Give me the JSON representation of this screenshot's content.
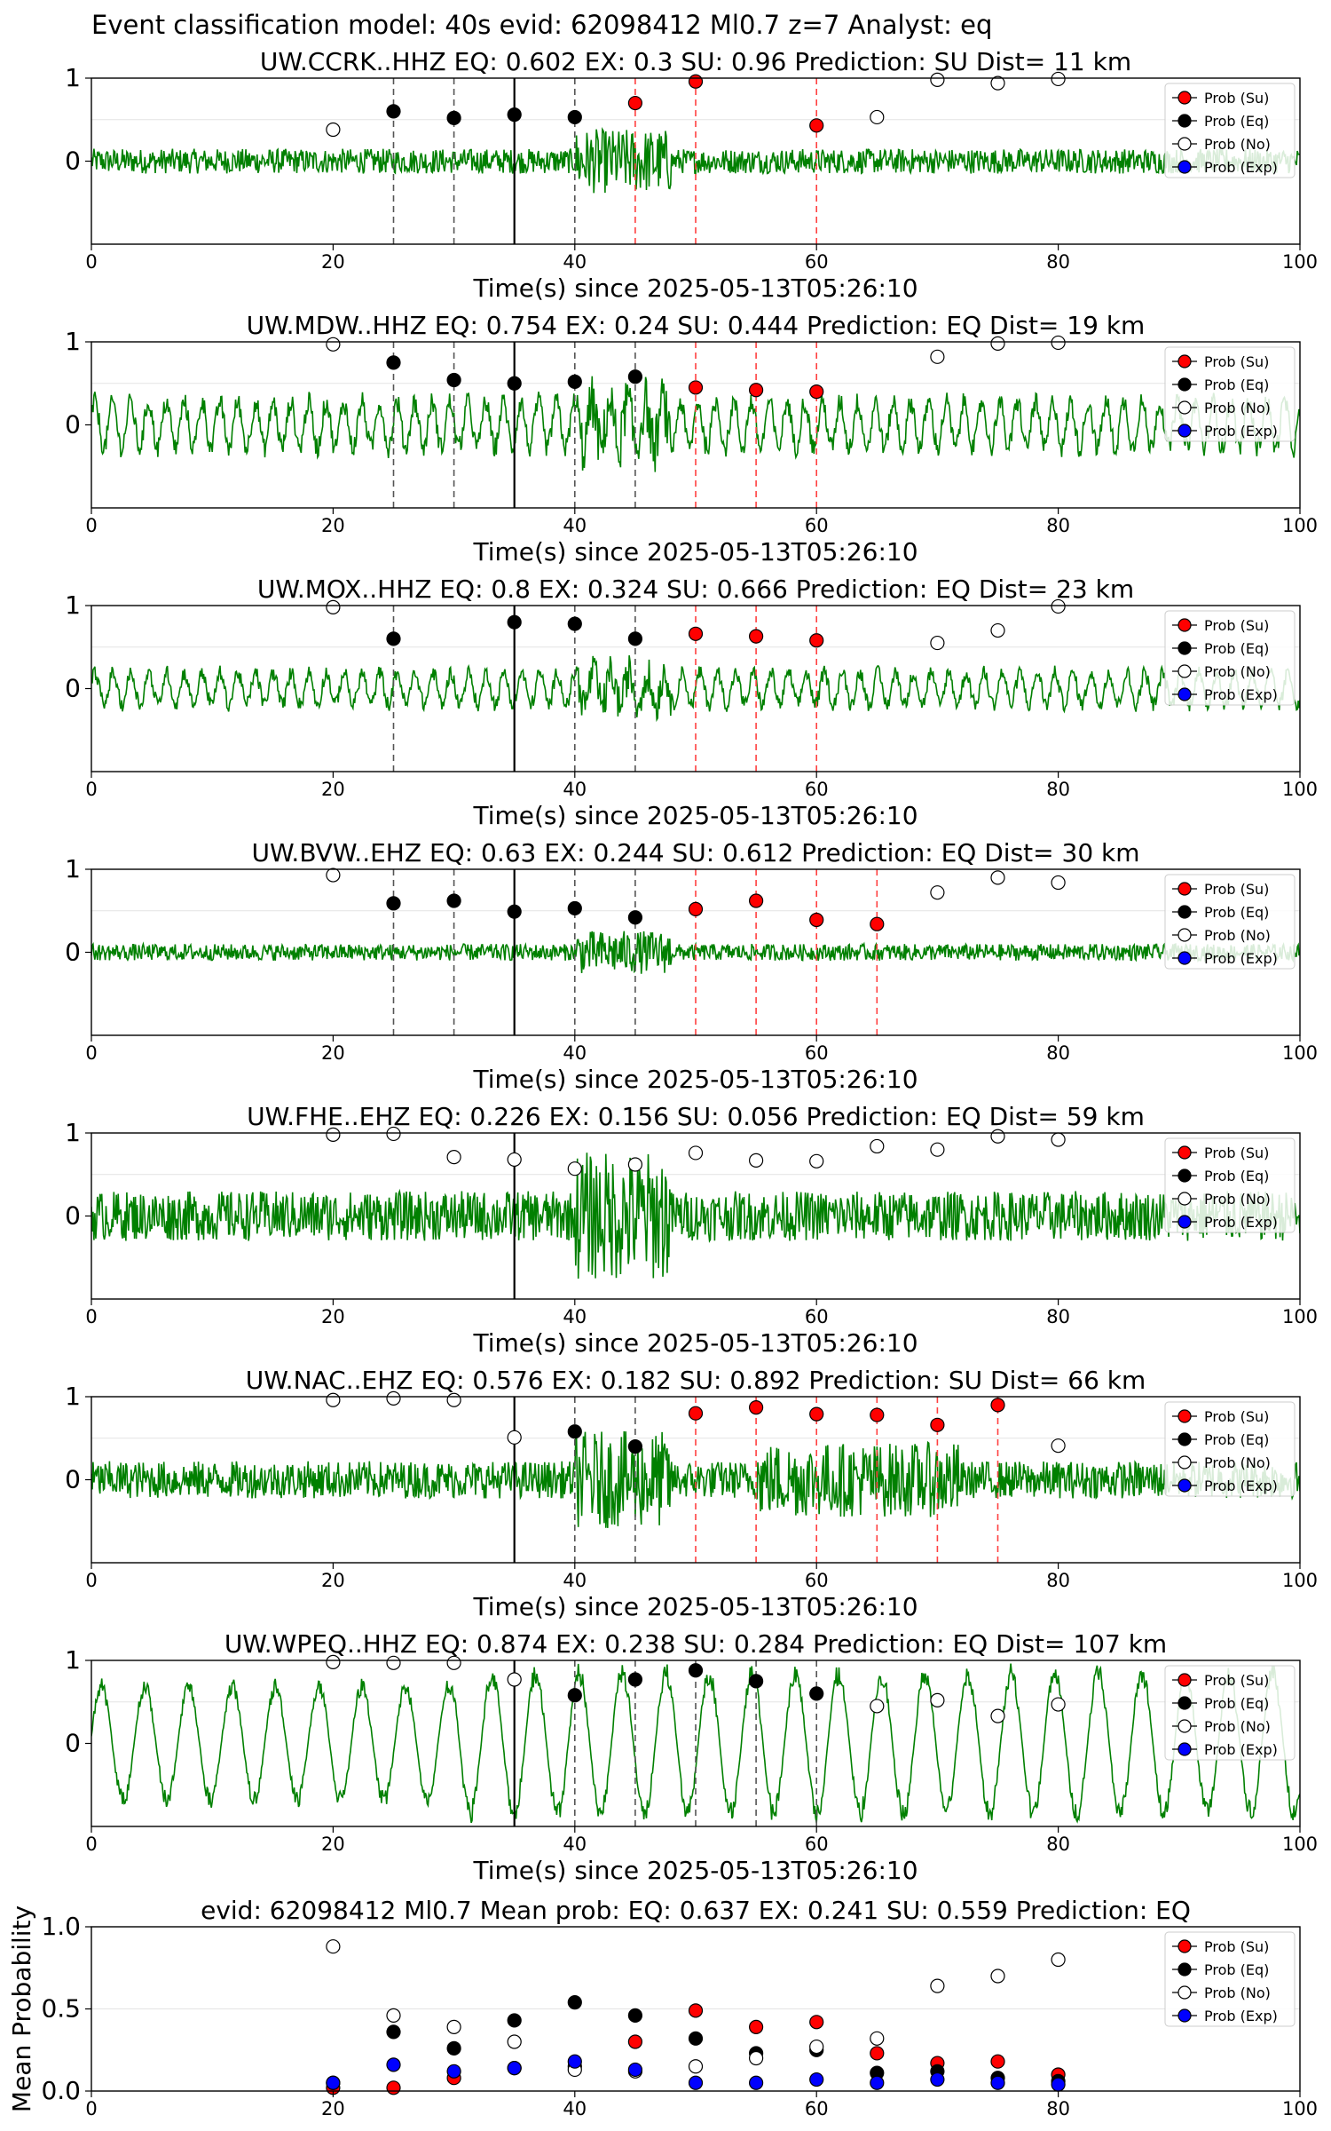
{
  "suptitle": "Event classification model: 40s evid: 62098412 Ml0.7 z=7 Analyst: eq",
  "colors": {
    "waveform": "#008000",
    "su": "#ff0000",
    "eq": "#000000",
    "no": "#ffffff",
    "exp": "#0000ff",
    "pick_line": "#555555",
    "su_line": "#ff4040"
  },
  "chart_data": [
    {
      "type": "scatter",
      "title": "UW.CCRK..HHZ   EQ: 0.602  EX: 0.3  SU: 0.96   Prediction: SU    Dist= 11 km",
      "xlabel": "Time(s) since 2025-05-13T05:26:10",
      "xlim": [
        0,
        100
      ],
      "ylim": [
        -1,
        1
      ],
      "xticks": [
        "0",
        "20",
        "40",
        "60",
        "80",
        "100"
      ],
      "yticks": [
        "1",
        "0"
      ],
      "legend": [
        "Prob (Su)",
        "Prob (Eq)",
        "Prob (No)",
        "Prob (Exp)"
      ],
      "legend_position": "top-right",
      "waveform_amplitude": 0.3,
      "waveform_period": "short",
      "origin_time": 35,
      "series": [
        {
          "name": "Prob (Su)",
          "points": [
            [
              45,
              0.7
            ],
            [
              50,
              0.96
            ],
            [
              60,
              0.43
            ]
          ]
        },
        {
          "name": "Prob (Eq)",
          "points": [
            [
              25,
              0.6
            ],
            [
              30,
              0.52
            ],
            [
              35,
              0.56
            ],
            [
              40,
              0.53
            ]
          ]
        },
        {
          "name": "Prob (No)",
          "points": [
            [
              20,
              0.38
            ],
            [
              65,
              0.53
            ],
            [
              70,
              0.98
            ],
            [
              75,
              0.94
            ],
            [
              80,
              0.99
            ]
          ]
        }
      ],
      "dashed_black": [
        25,
        30,
        40
      ],
      "dashed_red": [
        45,
        50,
        60
      ]
    },
    {
      "type": "scatter",
      "title": "UW.MDW..HHZ   EQ: 0.754  EX: 0.24  SU: 0.444   Prediction: EQ    Dist= 19 km",
      "xlabel": "Time(s) since 2025-05-13T05:26:10",
      "xlim": [
        0,
        100
      ],
      "ylim": [
        -1,
        1
      ],
      "xticks": [
        "0",
        "20",
        "40",
        "60",
        "80",
        "100"
      ],
      "yticks": [
        "1",
        "0"
      ],
      "legend": [
        "Prob (Su)",
        "Prob (Eq)",
        "Prob (No)",
        "Prob (Exp)"
      ],
      "legend_position": "top-right",
      "waveform_amplitude": 0.5,
      "waveform_period": "medium",
      "origin_time": 35,
      "series": [
        {
          "name": "Prob (Su)",
          "points": [
            [
              50,
              0.45
            ],
            [
              55,
              0.42
            ],
            [
              60,
              0.4
            ]
          ]
        },
        {
          "name": "Prob (Eq)",
          "points": [
            [
              25,
              0.75
            ],
            [
              30,
              0.54
            ],
            [
              35,
              0.5
            ],
            [
              40,
              0.52
            ],
            [
              45,
              0.58
            ]
          ]
        },
        {
          "name": "Prob (No)",
          "points": [
            [
              20,
              0.97
            ],
            [
              70,
              0.82
            ],
            [
              75,
              0.98
            ],
            [
              80,
              0.99
            ]
          ]
        }
      ],
      "dashed_black": [
        25,
        30,
        40,
        45
      ],
      "dashed_red": [
        50,
        55,
        60
      ]
    },
    {
      "type": "scatter",
      "title": "UW.MOX..HHZ   EQ: 0.8  EX: 0.324  SU: 0.666   Prediction: EQ    Dist= 23 km",
      "xlabel": "Time(s) since 2025-05-13T05:26:10",
      "xlim": [
        0,
        100
      ],
      "ylim": [
        -1,
        1
      ],
      "xticks": [
        "0",
        "20",
        "40",
        "60",
        "80",
        "100"
      ],
      "yticks": [
        "1",
        "0"
      ],
      "legend": [
        "Prob (Su)",
        "Prob (Eq)",
        "Prob (No)",
        "Prob (Exp)"
      ],
      "legend_position": "top-right",
      "waveform_amplitude": 0.35,
      "waveform_period": "medium",
      "origin_time": 35,
      "series": [
        {
          "name": "Prob (Su)",
          "points": [
            [
              50,
              0.66
            ],
            [
              55,
              0.63
            ],
            [
              60,
              0.58
            ]
          ]
        },
        {
          "name": "Prob (Eq)",
          "points": [
            [
              25,
              0.6
            ],
            [
              35,
              0.8
            ],
            [
              40,
              0.78
            ],
            [
              45,
              0.6
            ]
          ]
        },
        {
          "name": "Prob (No)",
          "points": [
            [
              20,
              0.98
            ],
            [
              70,
              0.55
            ],
            [
              75,
              0.7
            ],
            [
              80,
              0.99
            ]
          ]
        }
      ],
      "dashed_black": [
        25,
        40,
        45
      ],
      "dashed_red": [
        50,
        55,
        60
      ]
    },
    {
      "type": "scatter",
      "title": "UW.BVW..EHZ   EQ: 0.63  EX: 0.244  SU: 0.612   Prediction: EQ    Dist= 30 km",
      "xlabel": "Time(s) since 2025-05-13T05:26:10",
      "xlim": [
        0,
        100
      ],
      "ylim": [
        -1,
        1
      ],
      "xticks": [
        "0",
        "20",
        "40",
        "60",
        "80",
        "100"
      ],
      "yticks": [
        "1",
        "0"
      ],
      "legend": [
        "Prob (Su)",
        "Prob (Eq)",
        "Prob (No)",
        "Prob (Exp)"
      ],
      "legend_position": "top-right",
      "waveform_amplitude": 0.2,
      "waveform_period": "short",
      "origin_time": 35,
      "series": [
        {
          "name": "Prob (Su)",
          "points": [
            [
              50,
              0.52
            ],
            [
              55,
              0.62
            ],
            [
              60,
              0.39
            ],
            [
              65,
              0.34
            ]
          ]
        },
        {
          "name": "Prob (Eq)",
          "points": [
            [
              25,
              0.59
            ],
            [
              30,
              0.62
            ],
            [
              35,
              0.49
            ],
            [
              40,
              0.53
            ],
            [
              45,
              0.42
            ]
          ]
        },
        {
          "name": "Prob (No)",
          "points": [
            [
              20,
              0.93
            ],
            [
              70,
              0.72
            ],
            [
              75,
              0.9
            ],
            [
              80,
              0.84
            ]
          ]
        }
      ],
      "dashed_black": [
        25,
        30,
        40,
        45
      ],
      "dashed_red": [
        50,
        55,
        60,
        65
      ]
    },
    {
      "type": "scatter",
      "title": "UW.FHE..EHZ   EQ: 0.226  EX: 0.156  SU: 0.056   Prediction: EQ    Dist= 59 km",
      "xlabel": "Time(s) since 2025-05-13T05:26:10",
      "xlim": [
        0,
        100
      ],
      "ylim": [
        -1,
        1
      ],
      "xticks": [
        "0",
        "20",
        "40",
        "60",
        "80",
        "100"
      ],
      "yticks": [
        "1",
        "0"
      ],
      "legend": [
        "Prob (Su)",
        "Prob (Eq)",
        "Prob (No)",
        "Prob (Exp)"
      ],
      "legend_position": "top-right",
      "waveform_amplitude": 0.6,
      "waveform_period": "short",
      "origin_time": 35,
      "series": [
        {
          "name": "Prob (No)",
          "points": [
            [
              20,
              0.98
            ],
            [
              25,
              0.99
            ],
            [
              30,
              0.71
            ],
            [
              35,
              0.68
            ],
            [
              40,
              0.57
            ],
            [
              45,
              0.62
            ],
            [
              50,
              0.76
            ],
            [
              55,
              0.67
            ],
            [
              60,
              0.66
            ],
            [
              65,
              0.84
            ],
            [
              70,
              0.8
            ],
            [
              75,
              0.96
            ],
            [
              80,
              0.92
            ]
          ]
        }
      ],
      "dashed_black": [],
      "dashed_red": []
    },
    {
      "type": "scatter",
      "title": "UW.NAC..EHZ   EQ: 0.576  EX: 0.182  SU: 0.892   Prediction: SU    Dist= 66 km",
      "xlabel": "Time(s) since 2025-05-13T05:26:10",
      "xlim": [
        0,
        100
      ],
      "ylim": [
        -1,
        1
      ],
      "xticks": [
        "0",
        "20",
        "40",
        "60",
        "80",
        "100"
      ],
      "yticks": [
        "1",
        "0"
      ],
      "legend": [
        "Prob (Su)",
        "Prob (Eq)",
        "Prob (No)",
        "Prob (Exp)"
      ],
      "legend_position": "top-right",
      "waveform_amplitude": 0.45,
      "waveform_period": "short",
      "origin_time": 35,
      "series": [
        {
          "name": "Prob (Su)",
          "points": [
            [
              50,
              0.8
            ],
            [
              55,
              0.87
            ],
            [
              60,
              0.79
            ],
            [
              65,
              0.78
            ],
            [
              70,
              0.66
            ],
            [
              75,
              0.9
            ]
          ]
        },
        {
          "name": "Prob (Eq)",
          "points": [
            [
              40,
              0.58
            ],
            [
              45,
              0.4
            ]
          ]
        },
        {
          "name": "Prob (No)",
          "points": [
            [
              20,
              0.96
            ],
            [
              25,
              0.98
            ],
            [
              30,
              0.96
            ],
            [
              35,
              0.51
            ],
            [
              80,
              0.41
            ]
          ]
        }
      ],
      "dashed_black": [
        40,
        45
      ],
      "dashed_red": [
        50,
        55,
        60,
        65,
        70,
        75
      ]
    },
    {
      "type": "scatter",
      "title": "UW.WPEQ..HHZ   EQ: 0.874  EX: 0.238  SU: 0.284   Prediction: EQ    Dist= 107 km",
      "xlabel": "Time(s) since 2025-05-13T05:26:10",
      "xlim": [
        0,
        100
      ],
      "ylim": [
        -1,
        1
      ],
      "xticks": [
        "0",
        "20",
        "40",
        "60",
        "80",
        "100"
      ],
      "yticks": [
        "1",
        "0"
      ],
      "legend": [
        "Prob (Su)",
        "Prob (Eq)",
        "Prob (No)",
        "Prob (Exp)"
      ],
      "legend_position": "top-right",
      "waveform_amplitude": 0.8,
      "waveform_period": "long",
      "origin_time": 35,
      "series": [
        {
          "name": "Prob (Eq)",
          "points": [
            [
              40,
              0.58
            ],
            [
              45,
              0.77
            ],
            [
              50,
              0.88
            ],
            [
              55,
              0.75
            ],
            [
              60,
              0.6
            ]
          ]
        },
        {
          "name": "Prob (No)",
          "points": [
            [
              20,
              0.98
            ],
            [
              25,
              0.97
            ],
            [
              30,
              0.97
            ],
            [
              35,
              0.77
            ],
            [
              65,
              0.45
            ],
            [
              70,
              0.52
            ],
            [
              75,
              0.33
            ],
            [
              80,
              0.47
            ]
          ]
        }
      ],
      "dashed_black": [
        40,
        45,
        50,
        55,
        60
      ],
      "dashed_red": []
    },
    {
      "type": "scatter",
      "title": "evid: 62098412   Ml0.7   Mean prob:   EQ: 0.637   EX: 0.241   SU: 0.559   Prediction: EQ",
      "xlabel": "",
      "ylabel": "Mean Probability",
      "xlim": [
        0,
        100
      ],
      "ylim": [
        0,
        1
      ],
      "xticks": [
        "0",
        "20",
        "40",
        "60",
        "80",
        "100"
      ],
      "yticks": [
        "1.0",
        "0.5",
        "0.0"
      ],
      "legend": [
        "Prob (Su)",
        "Prob (Eq)",
        "Prob (No)",
        "Prob (Exp)"
      ],
      "legend_position": "top-right",
      "series": [
        {
          "name": "Prob (Su)",
          "points": [
            [
              20,
              0.02
            ],
            [
              25,
              0.02
            ],
            [
              30,
              0.08
            ],
            [
              35,
              0.14
            ],
            [
              40,
              0.15
            ],
            [
              45,
              0.3
            ],
            [
              50,
              0.49
            ],
            [
              55,
              0.39
            ],
            [
              60,
              0.42
            ],
            [
              65,
              0.23
            ],
            [
              70,
              0.17
            ],
            [
              75,
              0.18
            ],
            [
              80,
              0.1
            ]
          ]
        },
        {
          "name": "Prob (Eq)",
          "points": [
            [
              20,
              0.05
            ],
            [
              25,
              0.36
            ],
            [
              30,
              0.26
            ],
            [
              35,
              0.43
            ],
            [
              40,
              0.54
            ],
            [
              45,
              0.46
            ],
            [
              50,
              0.32
            ],
            [
              55,
              0.23
            ],
            [
              60,
              0.25
            ],
            [
              65,
              0.11
            ],
            [
              70,
              0.12
            ],
            [
              75,
              0.08
            ],
            [
              80,
              0.06
            ]
          ]
        },
        {
          "name": "Prob (No)",
          "points": [
            [
              20,
              0.88
            ],
            [
              25,
              0.46
            ],
            [
              30,
              0.39
            ],
            [
              35,
              0.3
            ],
            [
              40,
              0.13
            ],
            [
              45,
              0.12
            ],
            [
              50,
              0.15
            ],
            [
              55,
              0.2
            ],
            [
              60,
              0.27
            ],
            [
              65,
              0.32
            ],
            [
              70,
              0.64
            ],
            [
              75,
              0.7
            ],
            [
              80,
              0.8
            ]
          ]
        },
        {
          "name": "Prob (Exp)",
          "points": [
            [
              20,
              0.05
            ],
            [
              25,
              0.16
            ],
            [
              30,
              0.12
            ],
            [
              35,
              0.14
            ],
            [
              40,
              0.18
            ],
            [
              45,
              0.13
            ],
            [
              50,
              0.05
            ],
            [
              55,
              0.05
            ],
            [
              60,
              0.07
            ],
            [
              65,
              0.05
            ],
            [
              70,
              0.07
            ],
            [
              75,
              0.05
            ],
            [
              80,
              0.04
            ]
          ]
        }
      ]
    }
  ]
}
